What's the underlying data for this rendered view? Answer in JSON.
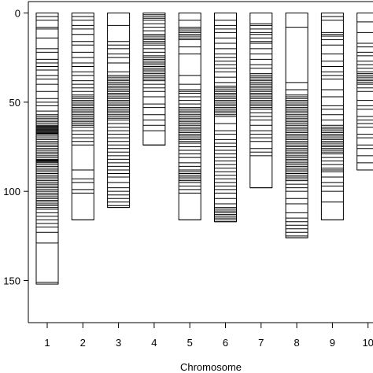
{
  "chart_data": {
    "type": "linkage-map",
    "title": "",
    "xlabel": "Chromosome",
    "ylabel": "",
    "ylim": [
      0,
      155
    ],
    "y_reversed": true,
    "y_ticks": [
      0,
      50,
      100,
      150
    ],
    "x_ticks": [
      "1",
      "2",
      "3",
      "4",
      "5",
      "6",
      "7",
      "8",
      "9",
      "10"
    ],
    "chromosomes": [
      {
        "name": "1",
        "length": 152,
        "markers": [
          0,
          2,
          4,
          8,
          9,
          14,
          20,
          22,
          26,
          28,
          30,
          32,
          35,
          37,
          40,
          44,
          48,
          50,
          52,
          55,
          57,
          58,
          59,
          60,
          61,
          62,
          63,
          63.5,
          64,
          64.5,
          65,
          65.5,
          66,
          66.5,
          67,
          67.5,
          68,
          69,
          70,
          71,
          72,
          73,
          74,
          75,
          76,
          77,
          78,
          79,
          80,
          81,
          82,
          82.5,
          83,
          83.5,
          84,
          85,
          86,
          87,
          88,
          89,
          90,
          91,
          92,
          93,
          94,
          95,
          96,
          97,
          98,
          99,
          100,
          101,
          102,
          103,
          104,
          105,
          106,
          107,
          108,
          109,
          110,
          112,
          114,
          116,
          118,
          120,
          123,
          129,
          151
        ]
      },
      {
        "name": "2",
        "length": 116,
        "markers": [
          0,
          2,
          4,
          7,
          9,
          12,
          16,
          18,
          22,
          25,
          28,
          30,
          33,
          35,
          38,
          40,
          42,
          44,
          46,
          47,
          48,
          49,
          50,
          51,
          52,
          53,
          54,
          55,
          56,
          57,
          58,
          59,
          60,
          61,
          62,
          63,
          64,
          66,
          68,
          70,
          72,
          74,
          88,
          93,
          95,
          99,
          101,
          116
        ]
      },
      {
        "name": "3",
        "length": 109,
        "markers": [
          0,
          7,
          16,
          18,
          20,
          23,
          25,
          28,
          33,
          35,
          36,
          37,
          38,
          39,
          40,
          41,
          42,
          43,
          44,
          45,
          46,
          47,
          48,
          49,
          50,
          51,
          52,
          53,
          54,
          55,
          56,
          57,
          58,
          59,
          60,
          62,
          64,
          66,
          68,
          70,
          72,
          74,
          76,
          78,
          80,
          82,
          84,
          86,
          88,
          90,
          92,
          95,
          98,
          100,
          102,
          104,
          106,
          108,
          109
        ]
      },
      {
        "name": "4",
        "length": 74,
        "markers": [
          0,
          1,
          2,
          3,
          4,
          6,
          8,
          10,
          12,
          13,
          14,
          15,
          16,
          17,
          18,
          20,
          22,
          24,
          25,
          26,
          27,
          28,
          29,
          30,
          31,
          32,
          33,
          34,
          35,
          36,
          37,
          38,
          40,
          42,
          44,
          47,
          51,
          53,
          57,
          60,
          63,
          66,
          74
        ]
      },
      {
        "name": "5",
        "length": 116,
        "markers": [
          0,
          4,
          8,
          9,
          10,
          11,
          12,
          13,
          14,
          15,
          19,
          23,
          35,
          40,
          43,
          44,
          45,
          47,
          49,
          51,
          53,
          54,
          55,
          56,
          57,
          58,
          59,
          60,
          61,
          62,
          63,
          64,
          65,
          66,
          67,
          68,
          69,
          70,
          71,
          72,
          73,
          75,
          77,
          79,
          81,
          84,
          86,
          88,
          89,
          90,
          91,
          92,
          93,
          94,
          95,
          97,
          99,
          101,
          116
        ]
      },
      {
        "name": "6",
        "length": 117,
        "markers": [
          0,
          4,
          7,
          9,
          11,
          14,
          17,
          20,
          23,
          25,
          27,
          29,
          31,
          33,
          36,
          39,
          41,
          42,
          43,
          44,
          45,
          46,
          47,
          48,
          49,
          50,
          51,
          52,
          53,
          54,
          55,
          56,
          57,
          58,
          62,
          66,
          68,
          71,
          73,
          75,
          77,
          79,
          81,
          83,
          85,
          87,
          89,
          91,
          93,
          95,
          97,
          99,
          101,
          104,
          107,
          109,
          110,
          111,
          112,
          113,
          114,
          115,
          116,
          117
        ]
      },
      {
        "name": "7",
        "length": 98,
        "markers": [
          0,
          6,
          7,
          9,
          11,
          12,
          14,
          16,
          17,
          20,
          23,
          26,
          29,
          31,
          34,
          35,
          36,
          37,
          38,
          39,
          40,
          41,
          42,
          43,
          44,
          45,
          46,
          47,
          48,
          49,
          50,
          51,
          52,
          53,
          54,
          56,
          58,
          60,
          63,
          66,
          68,
          70,
          72,
          76,
          78,
          80,
          98
        ]
      },
      {
        "name": "8",
        "length": 126,
        "markers": [
          0,
          8,
          39,
          43,
          46,
          47,
          48,
          49,
          50,
          51,
          52,
          53,
          54,
          55,
          56,
          57,
          58,
          59,
          60,
          61,
          62,
          63,
          64,
          65,
          66,
          67,
          68,
          69,
          70,
          71,
          72,
          73,
          74,
          75,
          76,
          77,
          78,
          79,
          80,
          81,
          82,
          83,
          84,
          85,
          86,
          87,
          88,
          89,
          90,
          91,
          92,
          93,
          94,
          96,
          98,
          100,
          104,
          107,
          112,
          115,
          117,
          119,
          121,
          123,
          125,
          126
        ]
      },
      {
        "name": "9",
        "length": 116,
        "markers": [
          0,
          2,
          4,
          11,
          12,
          13,
          15,
          18,
          23,
          27,
          30,
          33,
          35,
          37,
          43,
          47,
          52,
          54,
          57,
          60,
          63,
          64,
          65,
          66,
          67,
          68,
          69,
          70,
          71,
          72,
          73,
          74,
          75,
          76,
          77,
          78,
          79,
          81,
          83,
          85,
          87,
          88,
          89,
          92,
          95,
          97,
          100,
          106,
          116
        ]
      },
      {
        "name": "10",
        "length": 88,
        "markers": [
          0,
          5,
          11,
          17,
          19,
          22,
          24,
          27,
          29,
          31,
          33,
          34,
          35,
          36,
          37,
          38,
          39,
          40,
          42,
          44,
          49,
          52,
          54,
          58,
          60,
          62,
          64,
          68,
          70,
          74,
          76,
          80,
          84,
          88
        ]
      }
    ]
  }
}
